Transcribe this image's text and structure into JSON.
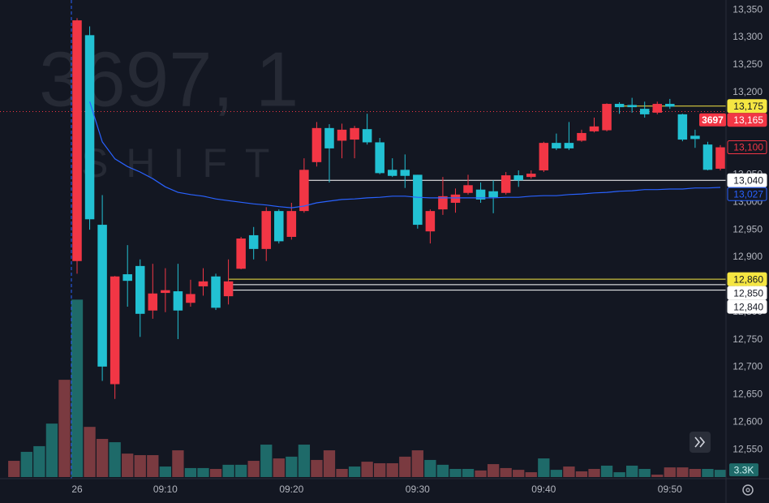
{
  "chart_data": {
    "type": "candlestick",
    "watermark": {
      "symbol": "3697, 1",
      "name": "SHIFT"
    },
    "x": [
      -5,
      -4,
      -3,
      -2,
      -1,
      0,
      1,
      2,
      3,
      4,
      5,
      6,
      7,
      8,
      9,
      10,
      11,
      12,
      13,
      14,
      15,
      16,
      17,
      18,
      19,
      20,
      21,
      22,
      23,
      24,
      25,
      26,
      27,
      28,
      29,
      30,
      31,
      32,
      33,
      34,
      35,
      36,
      37,
      38,
      39,
      40,
      41,
      42,
      43,
      44,
      45,
      46,
      47,
      48,
      49,
      50,
      51
    ],
    "open": [
      null,
      null,
      null,
      null,
      null,
      12893,
      13304,
      12959,
      12669,
      12869,
      12884,
      12803,
      12835,
      12838,
      12817,
      12847,
      12865,
      12829,
      12879,
      12940,
      12915,
      12984,
      12937,
      12984,
      13073,
      13135,
      13112,
      13114,
      13133,
      13109,
      13059,
      13059,
      13050,
      12947,
      12987,
      12999,
      13017,
      13023,
      13020,
      13017,
      13049,
      13046,
      13058,
      13108,
      13108,
      13112,
      13129,
      13131,
      13179,
      13177,
      13170,
      13163,
      13179,
      13160,
      13121,
      13105,
      13061
    ],
    "high": [
      null,
      null,
      null,
      null,
      null,
      13335,
      13320,
      13013,
      12866,
      12922,
      12896,
      12888,
      12880,
      12888,
      12859,
      12880,
      12870,
      12896,
      12937,
      12955,
      12991,
      12987,
      12999,
      13080,
      13146,
      13142,
      13143,
      13139,
      13161,
      13117,
      13080,
      13087,
      13050,
      12987,
      13046,
      13025,
      13050,
      13036,
      13040,
      13055,
      13058,
      13058,
      13110,
      13125,
      13146,
      13132,
      13154,
      13180,
      13182,
      13190,
      13183,
      13183,
      13188,
      13161,
      13132,
      13110,
      13104
    ],
    "low": [
      null,
      null,
      null,
      null,
      null,
      12870,
      12950,
      12675,
      12642,
      12810,
      12755,
      12788,
      12800,
      12751,
      12810,
      12830,
      12804,
      12814,
      12878,
      12896,
      12893,
      12925,
      12932,
      12981,
      13065,
      13036,
      13080,
      13080,
      13105,
      13051,
      13046,
      13026,
      12952,
      12925,
      12977,
      12981,
      13014,
      12999,
      12980,
      13014,
      13028,
      13043,
      13055,
      13095,
      13095,
      13110,
      13127,
      13129,
      13161,
      13163,
      13154,
      13160,
      13170,
      13111,
      13099,
      13058,
      13058
    ],
    "close": [
      null,
      null,
      null,
      null,
      null,
      13331,
      12969,
      12701,
      12865,
      12857,
      12797,
      12834,
      12840,
      12803,
      12833,
      12856,
      12808,
      12856,
      12934,
      12915,
      12984,
      12929,
      12984,
      13059,
      13135,
      13098,
      13132,
      13135,
      13109,
      13053,
      13048,
      13048,
      12959,
      12984,
      13011,
      13014,
      13031,
      13005,
      13009,
      13049,
      13040,
      13052,
      13108,
      13098,
      13098,
      13126,
      13138,
      13179,
      13173,
      13173,
      13160,
      13179,
      13174,
      13114,
      13115,
      13059,
      13100
    ],
    "up_color": "#f23645",
    "down_color": "#22c1d3",
    "ma": {
      "color": "#2962ff",
      "values": [
        null,
        null,
        null,
        null,
        null,
        null,
        13183,
        13110,
        13079,
        13065,
        13055,
        13043,
        13028,
        13018,
        13014,
        13011,
        13006,
        13003,
        13000,
        12997,
        12995,
        12992,
        12990,
        12993,
        12999,
        13002,
        13005,
        13006,
        13008,
        13009,
        13011,
        13011,
        13009,
        13008,
        13008,
        13008,
        13008,
        13008,
        13008,
        13009,
        13009,
        13011,
        13012,
        13012,
        13014,
        13015,
        13017,
        13018,
        13020,
        13021,
        13023,
        13023,
        13024,
        13024,
        13026,
        13026,
        13027
      ]
    },
    "volume": {
      "values": [
        7.4,
        11.5,
        14.1,
        24.4,
        44.4,
        81,
        22.9,
        17.4,
        15.9,
        10.7,
        10,
        10,
        4.8,
        12.2,
        4.1,
        4.1,
        3.7,
        5.6,
        5.6,
        7.4,
        14.8,
        8.5,
        9.3,
        14.8,
        7.8,
        12.2,
        3.7,
        4.8,
        7,
        6.3,
        6.3,
        9.3,
        12.2,
        7.8,
        5.6,
        3.7,
        3.7,
        3,
        5.9,
        4.1,
        3.3,
        2.2,
        8.5,
        3.3,
        4.8,
        2.6,
        3.7,
        5.2,
        2.2,
        5.2,
        3.7,
        1.1,
        4.4,
        4.4,
        3.7,
        3.7,
        3.3
      ],
      "directions": [
        "up",
        "down",
        "down",
        "down",
        "up",
        "down",
        "up",
        "up",
        "down",
        "up",
        "up",
        "up",
        "down",
        "up",
        "down",
        "down",
        "up",
        "down",
        "down",
        "up",
        "down",
        "up",
        "down",
        "down",
        "up",
        "up",
        "up",
        "down",
        "up",
        "up",
        "up",
        "up",
        "up",
        "down",
        "down",
        "down",
        "down",
        "up",
        "up",
        "up",
        "up",
        "up",
        "down",
        "down",
        "up",
        "up",
        "up",
        "down",
        "down",
        "down",
        "down",
        "up",
        "up",
        "up",
        "up",
        "down",
        "down"
      ],
      "palette": {
        "up": "#7a3a40",
        "down": "#1e6a69"
      },
      "lim": [
        0,
        90
      ],
      "last_label": "3.3K"
    },
    "xlim": [
      -6.11,
      51.45
    ],
    "ylim": [
      12500,
      13368
    ],
    "xticks": [
      {
        "value": 0,
        "label": "26"
      },
      {
        "value": 7,
        "label": "09:10"
      },
      {
        "value": 17,
        "label": "09:20"
      },
      {
        "value": 27,
        "label": "09:30"
      },
      {
        "value": 37,
        "label": "09:40"
      },
      {
        "value": 47,
        "label": "09:50"
      }
    ],
    "yticks": [
      {
        "value": 12550,
        "label": "12,550"
      },
      {
        "value": 12600,
        "label": "12,600"
      },
      {
        "value": 12650,
        "label": "12,650"
      },
      {
        "value": 12700,
        "label": "12,700"
      },
      {
        "value": 12750,
        "label": "12,750"
      },
      {
        "value": 12800,
        "label": "12,800"
      },
      {
        "value": 12850,
        "label": "12,850"
      },
      {
        "value": 12900,
        "label": "12,900"
      },
      {
        "value": 12950,
        "label": "12,950"
      },
      {
        "value": 13000,
        "label": "13,000"
      },
      {
        "value": 13050,
        "label": "13,050"
      },
      {
        "value": 13100,
        "label": "13,100"
      },
      {
        "value": 13150,
        "label": "13,150"
      },
      {
        "value": 13200,
        "label": "13,200"
      },
      {
        "value": 13250,
        "label": "13,250"
      },
      {
        "value": 13300,
        "label": "13,300"
      },
      {
        "value": 13350,
        "label": "13,350"
      }
    ],
    "grid": false,
    "levels": [
      {
        "value": 13175,
        "label": "13,175",
        "color": "#f5e642",
        "style": "filled",
        "from": 43
      },
      {
        "value": 13165,
        "label": "13,165",
        "color": "#f23645",
        "style": "filled",
        "line": "dotted",
        "from": -6.11,
        "tag": "3697"
      },
      {
        "value": 13100,
        "label": "13,100",
        "color": "#f23645",
        "style": "outline"
      },
      {
        "value": 13040,
        "label": "13,040",
        "color": "#ffffff",
        "style": "filled",
        "from": 18
      },
      {
        "value": 13027,
        "label": "13,027",
        "color": "#2962ff",
        "style": "outline"
      },
      {
        "value": 12860,
        "label": "12,860",
        "color": "#f5e642",
        "style": "filled",
        "from": 12
      },
      {
        "value": 12850,
        "label": "12,850",
        "color": "#ffffff",
        "style": "filled",
        "from": 12
      },
      {
        "value": 12840,
        "label": "12,840",
        "color": "#ffffff",
        "style": "filled",
        "from": 12
      }
    ]
  }
}
